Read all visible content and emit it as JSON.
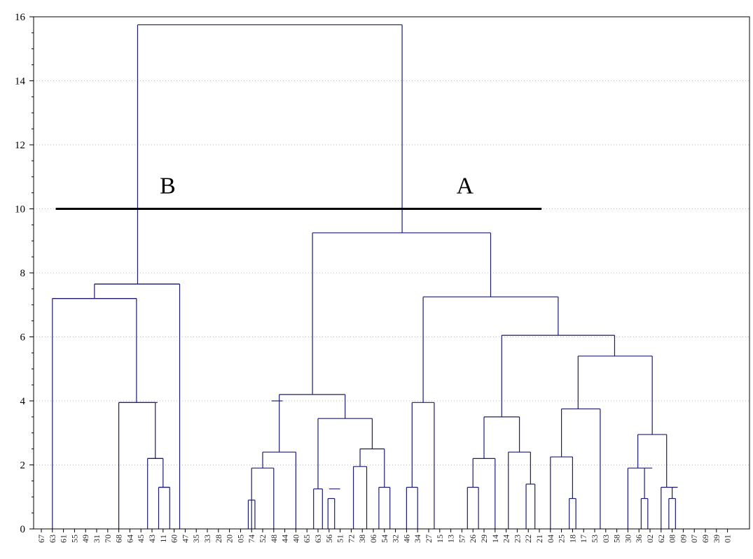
{
  "chart_data": {
    "type": "dendrogram",
    "ylim": [
      0,
      16
    ],
    "yticks": [
      "0",
      "2",
      "4",
      "6",
      "8",
      "10",
      "12",
      "14",
      "16"
    ],
    "grid": "horizontal dotted",
    "colors": {
      "links": "#1c1c6e",
      "cut_line": "#000000",
      "grid": "#bdbdbd"
    },
    "leaves": [
      "67",
      "63",
      "61",
      "55",
      "49",
      "31",
      "70",
      "68",
      "64",
      "45",
      "43",
      "11",
      "60",
      "47",
      "35",
      "33",
      "28",
      "20",
      "05",
      "74",
      "52",
      "48",
      "44",
      "40",
      "65",
      "63",
      "56",
      "51",
      "72",
      "38",
      "06",
      "54",
      "32",
      "46",
      "34",
      "27",
      "15",
      "13",
      "57",
      "26",
      "29",
      "14",
      "24",
      "23",
      "22",
      "21",
      "04",
      "25",
      "18",
      "17",
      "53",
      "03",
      "58",
      "30",
      "36",
      "02",
      "62",
      "08",
      "09",
      "07",
      "69",
      "39",
      "01"
    ],
    "cut": {
      "height": 10,
      "labels": [
        {
          "text": "B",
          "leaf_pos": 10.7
        },
        {
          "text": "A",
          "leaf_pos": 37.5
        }
      ]
    },
    "merges": [
      {
        "l": 20.8,
        "r": 21.8,
        "h": 4.0
      },
      {
        "l": 19.0,
        "r": 19.0,
        "h": 0.9
      },
      {
        "l": 21.0,
        "r": 21.0,
        "h": 1.9
      },
      {
        "l": 19.0,
        "r": 21.0,
        "h": 1.9
      },
      {
        "l": 20.0,
        "r": 23.0,
        "h": 2.4
      },
      {
        "l": 26.0,
        "r": 27.0,
        "h": 1.25
      },
      {
        "l": 26.0,
        "r": 26.0,
        "h": 0.95
      },
      {
        "l": 28.8,
        "r": 28.8,
        "h": 1.95
      },
      {
        "l": 30.5,
        "r": 31.5,
        "h": 1.3
      },
      {
        "l": 28.8,
        "r": 31.0,
        "h": 2.5
      },
      {
        "l": 25.0,
        "r": 29.9,
        "h": 3.45
      },
      {
        "l": 21.5,
        "r": 27.45,
        "h": 4.2
      },
      {
        "l": 33.0,
        "r": 34.0,
        "h": 1.3
      },
      {
        "l": 33.5,
        "r": 35.5,
        "h": 3.95
      },
      {
        "l": 38.5,
        "r": 39.5,
        "h": 1.3
      },
      {
        "l": 39.0,
        "r": 41.0,
        "h": 2.2
      },
      {
        "l": 42.2,
        "r": 44.2,
        "h": 2.4
      },
      {
        "l": 44.1,
        "r": 44.1,
        "h": 1.4
      },
      {
        "l": 40.0,
        "r": 43.2,
        "h": 3.5
      },
      {
        "l": 46.0,
        "r": 48.0,
        "h": 2.25
      },
      {
        "l": 48.0,
        "r": 48.0,
        "h": 0.95
      },
      {
        "l": 47.0,
        "r": 50.5,
        "h": 3.75
      },
      {
        "l": 53.0,
        "r": 55.2,
        "h": 1.9
      },
      {
        "l": 54.5,
        "r": 54.5,
        "h": 0.95
      },
      {
        "l": 56.0,
        "r": 57.5,
        "h": 1.3
      },
      {
        "l": 57.0,
        "r": 57.0,
        "h": 0.95
      },
      {
        "l": 53.9,
        "r": 56.5,
        "h": 2.95
      },
      {
        "l": 48.5,
        "r": 55.2,
        "h": 5.4
      },
      {
        "l": 41.6,
        "r": 51.8,
        "h": 6.05
      },
      {
        "l": 34.5,
        "r": 46.7,
        "h": 7.25
      },
      {
        "l": 24.5,
        "r": 40.6,
        "h": 9.25
      },
      {
        "l": 1.0,
        "r": 8.6,
        "h": 7.2
      },
      {
        "l": 7.0,
        "r": 10.5,
        "h": 3.95
      },
      {
        "l": 9.6,
        "r": 11.0,
        "h": 2.2
      },
      {
        "l": 10.6,
        "r": 11.6,
        "h": 1.3
      },
      {
        "l": 4.8,
        "r": 12.5,
        "h": 7.65
      },
      {
        "l": 8.6,
        "r": 8.6,
        "h": 3.95
      },
      {
        "l": 10.3,
        "r": 10.3,
        "h": 2.2
      },
      {
        "l": 11.1,
        "r": 11.1,
        "h": 1.3
      },
      {
        "l": 8.7,
        "r": 32.6,
        "h": 15.75
      }
    ]
  }
}
